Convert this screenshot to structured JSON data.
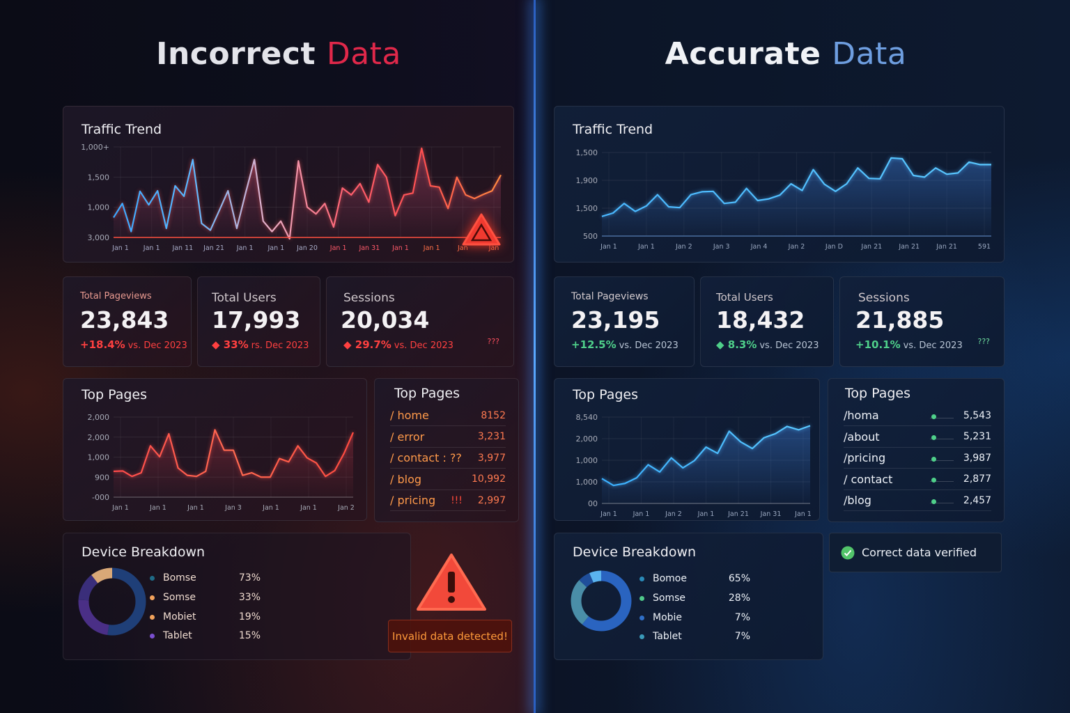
{
  "left": {
    "title_main": "Incorrect",
    "title_accent": "Data",
    "accent_color": "#e0284a",
    "traffic": {
      "title": "Traffic Trend",
      "y_ticks": [
        "1,000+",
        "1,500",
        "1,000",
        "3,000"
      ],
      "x_ticks": [
        "Jan 1",
        "Jan 1",
        "Jan 11",
        "Jan 21",
        "Jan 1",
        "Jan 1",
        "Jan 20",
        "Jan 1",
        "Jan 31",
        "Jan 1",
        "Jan 1",
        "Jan",
        "Jan"
      ],
      "values": [
        440,
        750,
        130,
        1020,
        720,
        1030,
        200,
        1140,
        910,
        1720,
        310,
        160,
        590,
        1030,
        200,
        980,
        1720,
        360,
        130,
        360,
        -30,
        1690,
        670,
        520,
        750,
        230,
        1090,
        940,
        1190,
        780,
        1610,
        1330,
        480,
        940,
        980,
        1970,
        1140,
        1110,
        640,
        1330,
        940,
        860,
        950,
        1030,
        1380
      ],
      "ylim": [
        0,
        2000
      ],
      "warning_icon": "warning-triangle-icon"
    },
    "kpis": [
      {
        "label": "Total Pageviews",
        "value": "23,843",
        "delta": "+18.4%",
        "vs": "vs. Dec 2023"
      },
      {
        "label": "Total Users",
        "value": "17,993",
        "delta": "◆ 33%",
        "vs": "rs. Dec 2023"
      },
      {
        "label": "Sessions",
        "value": "20,034",
        "delta": "◆ 29.7%",
        "vs": "vs. Dec 2023",
        "note": "???"
      }
    ],
    "top_chart": {
      "title": "Top Pages",
      "y_ticks": [
        "2,000",
        "2,000",
        "1,000",
        "900",
        "-000"
      ],
      "x_ticks": [
        "Jan 1",
        "Jan 1",
        "Jan 1",
        "Jan 3",
        "Jan 1",
        "Jan 1",
        "Jan 2"
      ],
      "values": [
        510,
        520,
        370,
        470,
        1210,
        910,
        1540,
        600,
        400,
        370,
        510,
        1650,
        1090,
        1090,
        400,
        470,
        350,
        350,
        860,
        770,
        1210,
        880,
        740,
        370,
        530,
        1000,
        1580
      ],
      "ylim": [
        -200,
        2000
      ]
    },
    "top_table": {
      "title": "Top Pages",
      "rows": [
        {
          "page": "/ home",
          "value": "8152"
        },
        {
          "page": "/ error",
          "value": "3,231"
        },
        {
          "page": "/ contact : ??",
          "value": "3,977"
        },
        {
          "page": "/ blog",
          "value": "10,992"
        },
        {
          "page": "/ pricing",
          "flag": "!!!",
          "value": "2,997"
        }
      ]
    },
    "device": {
      "title": "Device Breakdown",
      "items": [
        {
          "name": "Bomse",
          "pct": "73%",
          "value": 73,
          "color": "#1f3f78",
          "dot": "#1f6a86"
        },
        {
          "name": "Somse",
          "pct": "33%",
          "value": 33,
          "color": "#4a2f86",
          "dot": "#f2a25c"
        },
        {
          "name": "Mobiet",
          "pct": "19%",
          "value": 19,
          "color": "#3a2e7a",
          "dot": "#f2a25c"
        },
        {
          "name": "Tablet",
          "pct": "15%",
          "value": 15,
          "color": "#d9a877",
          "dot": "#7a4fd0"
        }
      ]
    },
    "alert": {
      "icon": "warning-triangle-icon",
      "text": "Invalid data detected!"
    }
  },
  "right": {
    "title_main": "Accurate",
    "title_accent": "Data",
    "accent_color": "#6e9ee0",
    "traffic": {
      "title": "Traffic Trend",
      "y_ticks": [
        "1,500",
        "1,900",
        "1,500",
        "500"
      ],
      "x_ticks": [
        "Jan 1",
        "Jan 1",
        "Jan 2",
        "Jan 3",
        "Jan 4",
        "Jan 2",
        "Jan D",
        "Jan 21",
        "Jan 21",
        "Jan 21",
        "591"
      ],
      "values": [
        470,
        550,
        780,
        590,
        720,
        990,
        700,
        680,
        990,
        1060,
        1070,
        780,
        810,
        1140,
        850,
        890,
        980,
        1250,
        1090,
        1590,
        1240,
        1070,
        1250,
        1630,
        1380,
        1370,
        1870,
        1850,
        1450,
        1410,
        1630,
        1480,
        1510,
        1770,
        1710,
        1710
      ],
      "ylim": [
        0,
        2000
      ]
    },
    "kpis": [
      {
        "label": "Total Pageviews",
        "value": "23,195",
        "delta": "+12.5%",
        "vs": "vs. Dec 2023"
      },
      {
        "label": "Total Users",
        "value": "18,432",
        "delta": "◆ 8.3%",
        "vs": "vs. Dec 2023"
      },
      {
        "label": "Sessions",
        "value": "21,885",
        "delta": "+10.1%",
        "vs": "vs. Dec 2023",
        "note": "???"
      }
    ],
    "top_chart": {
      "title": "Top Pages",
      "y_ticks": [
        "8,540",
        "2,000",
        "1,000",
        "1,000",
        "00"
      ],
      "x_ticks": [
        "Jan 1",
        "Jan 1",
        "Jan 2",
        "Jan 1",
        "Jan 21",
        "Jan 31",
        "Jan 1"
      ],
      "values": [
        720,
        520,
        580,
        740,
        1120,
        910,
        1320,
        1030,
        1240,
        1630,
        1450,
        2090,
        1780,
        1590,
        1900,
        2020,
        2230,
        2130,
        2250
      ],
      "ylim": [
        0,
        2500
      ]
    },
    "top_table": {
      "title": "Top Pages",
      "rows": [
        {
          "page": "/homa",
          "value": "5,543"
        },
        {
          "page": "/about",
          "value": "5,231"
        },
        {
          "page": "/pricing",
          "value": "3,987"
        },
        {
          "page": "/ contact",
          "value": "2,877"
        },
        {
          "page": "/blog",
          "value": "2,457"
        }
      ]
    },
    "device": {
      "title": "Device Breakdown",
      "items": [
        {
          "name": "Bomoe",
          "pct": "65%",
          "value": 65,
          "color": "#2a64c0",
          "dot": "#2a8ab8"
        },
        {
          "name": "Somse",
          "pct": "28%",
          "value": 28,
          "color": "#4a8ea8",
          "dot": "#4fc98a"
        },
        {
          "name": "Mobie",
          "pct": "7%",
          "value": 7,
          "color": "#1f4e9a",
          "dot": "#2f6fc8"
        },
        {
          "name": "Tablet",
          "pct": "7%",
          "value": 7,
          "color": "#5ab4ef",
          "dot": "#3a9ab8"
        }
      ]
    },
    "verified": {
      "icon": "check-circle-icon",
      "text": "Correct data verified"
    }
  }
}
